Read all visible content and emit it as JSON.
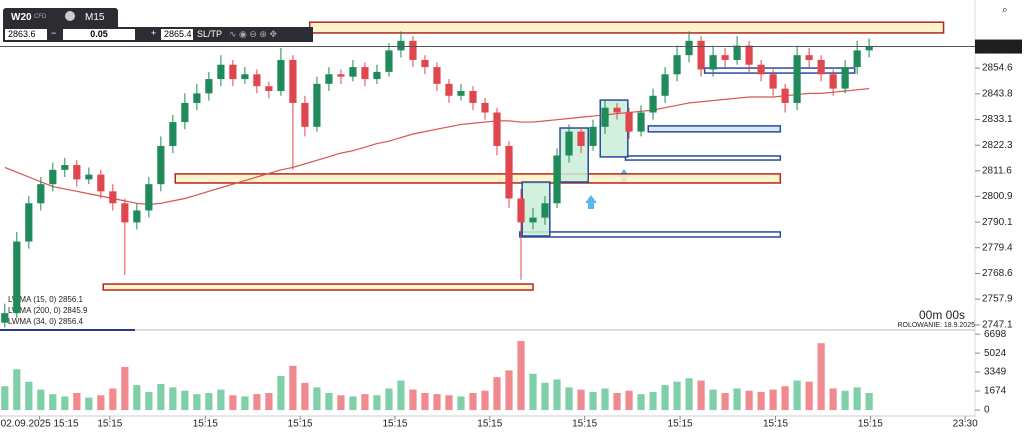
{
  "toolbar": {
    "symbol": "W20",
    "symbol_type": "CFD",
    "timeframe": "M15",
    "sell": "2863.6",
    "spread": "0.05",
    "buy": "2865.4",
    "sltp": "SL/TP"
  },
  "timer": "00m 00s",
  "rollover": "ROLOWANIE: 18.9.2025",
  "chart_data": [
    {
      "type": "candlestick",
      "open": [
        2748,
        2752,
        2782,
        2798,
        2806,
        2812,
        2814,
        2808,
        2810,
        2803,
        2798,
        2790,
        2795,
        2806,
        2822,
        2832,
        2840,
        2844,
        2850,
        2856,
        2850,
        2852,
        2847,
        2845,
        2858,
        2840,
        2830,
        2848,
        2852,
        2851,
        2855,
        2850,
        2853,
        2862,
        2866,
        2858,
        2855,
        2848,
        2843,
        2845,
        2840,
        2836,
        2822,
        2800,
        2790,
        2792,
        2798,
        2818,
        2828,
        2822,
        2830,
        2838,
        2836,
        2828,
        2836,
        2843,
        2852,
        2860,
        2866,
        2854,
        2860,
        2858,
        2864,
        2856,
        2852,
        2846,
        2840,
        2860,
        2858,
        2852,
        2846,
        2855,
        2862
      ],
      "high": [
        2756,
        2786,
        2801,
        2809,
        2815,
        2817,
        2816,
        2813,
        2812,
        2806,
        2800,
        2798,
        2809,
        2826,
        2835,
        2844,
        2848,
        2853,
        2860,
        2858,
        2855,
        2854,
        2849,
        2863,
        2860,
        2843,
        2851,
        2855,
        2854,
        2858,
        2857,
        2856,
        2865,
        2870,
        2868,
        2860,
        2857,
        2850,
        2848,
        2847,
        2842,
        2838,
        2824,
        2804,
        2796,
        2801,
        2821,
        2831,
        2830,
        2833,
        2841,
        2840,
        2838,
        2839,
        2846,
        2855,
        2864,
        2870,
        2868,
        2864,
        2863,
        2868,
        2866,
        2858,
        2854,
        2848,
        2864,
        2863,
        2860,
        2854,
        2858,
        2866,
        2867
      ],
      "low": [
        2746,
        2750,
        2779,
        2795,
        2803,
        2809,
        2805,
        2806,
        2800,
        2795,
        2768,
        2787,
        2792,
        2803,
        2819,
        2829,
        2837,
        2841,
        2847,
        2847,
        2848,
        2844,
        2842,
        2843,
        2812,
        2826,
        2828,
        2845,
        2848,
        2849,
        2847,
        2848,
        2851,
        2859,
        2855,
        2852,
        2845,
        2840,
        2841,
        2837,
        2833,
        2818,
        2796,
        2766,
        2787,
        2789,
        2796,
        2815,
        2819,
        2820,
        2827,
        2833,
        2825,
        2826,
        2833,
        2840,
        2849,
        2857,
        2851,
        2851,
        2855,
        2856,
        2853,
        2849,
        2843,
        2836,
        2837,
        2855,
        2849,
        2843,
        2844,
        2852,
        2859
      ],
      "close": [
        2752,
        2782,
        2798,
        2806,
        2812,
        2814,
        2808,
        2810,
        2803,
        2798,
        2790,
        2795,
        2806,
        2822,
        2832,
        2840,
        2844,
        2850,
        2856,
        2850,
        2852,
        2847,
        2845,
        2858,
        2840,
        2830,
        2848,
        2852,
        2851,
        2855,
        2850,
        2853,
        2862,
        2866,
        2858,
        2855,
        2848,
        2843,
        2845,
        2840,
        2836,
        2822,
        2800,
        2790,
        2792,
        2798,
        2818,
        2828,
        2822,
        2830,
        2838,
        2836,
        2828,
        2836,
        2843,
        2852,
        2860,
        2866,
        2854,
        2860,
        2858,
        2864,
        2856,
        2852,
        2846,
        2840,
        2860,
        2858,
        2852,
        2846,
        2855,
        2862,
        2863.6
      ],
      "up_color": "#1f8a5a",
      "down_color": "#e0464e",
      "ylim": [
        2745.8,
        2878.9
      ],
      "yticks": [
        2854.6,
        2843.8,
        2833.1,
        2822.3,
        2811.6,
        2800.9,
        2790.1,
        2779.4,
        2768.6,
        2757.9,
        2747.1
      ],
      "xlim": [
        -0.4,
        84.9
      ],
      "x_labels": [
        {
          "index": 2.9,
          "label": "02.09.2025 15:15"
        },
        {
          "index": 8.75,
          "label": "15:15"
        },
        {
          "index": 16.7,
          "label": "15:15"
        },
        {
          "index": 24.6,
          "label": "15:15"
        },
        {
          "index": 32.5,
          "label": "15:15"
        },
        {
          "index": 40.4,
          "label": "15:15"
        },
        {
          "index": 48.3,
          "label": "15:15"
        },
        {
          "index": 56.25,
          "label": "15:15"
        },
        {
          "index": 64.2,
          "label": "15:15"
        },
        {
          "index": 72.1,
          "label": "15:15"
        },
        {
          "index": 80,
          "label": "23:30"
        }
      ],
      "last_price": 2863.6,
      "indicators": [
        {
          "label": "LWMA (15, 0) 2856.1",
          "color": "#6b6bd0"
        },
        {
          "label": "LWMA (200, 0) 2845.9",
          "color": "#d9534f",
          "values": [
            2813,
            2811,
            2809,
            2807,
            2805,
            2804,
            2803,
            2802,
            2801,
            2800,
            2799,
            2798,
            2797.5,
            2798,
            2799,
            2800,
            2801.5,
            2803,
            2804.5,
            2806,
            2807.5,
            2809,
            2810.5,
            2812,
            2813,
            2814.5,
            2816,
            2817.5,
            2819,
            2820,
            2821.5,
            2823,
            2824,
            2825.5,
            2827,
            2828,
            2829,
            2830,
            2831,
            2831.5,
            2832,
            2832.5,
            2832.5,
            2832,
            2832,
            2832.5,
            2833,
            2833.5,
            2834,
            2834.5,
            2835,
            2835.5,
            2836,
            2836.5,
            2837,
            2838,
            2839,
            2840,
            2840.5,
            2841,
            2841.5,
            2842,
            2842.5,
            2842.5,
            2842.5,
            2843,
            2843.5,
            2844,
            2844,
            2844.5,
            2845,
            2845.5,
            2846
          ]
        },
        {
          "label": "LWMA (34, 0) 2856.4",
          "color": "#3fa36b"
        }
      ],
      "zones": [
        {
          "start": 25.4,
          "end": 78.2,
          "low": 2869.3,
          "high": 2873.8,
          "border": "#b3261e",
          "fill": "#fff2c6"
        },
        {
          "start": 14.2,
          "end": 64.6,
          "low": 2806.5,
          "high": 2810.3,
          "border": "#b3261e",
          "fill": "#fff2c6"
        },
        {
          "start": 8.2,
          "end": 44,
          "low": 2761.7,
          "high": 2764.2,
          "border": "#b3261e",
          "fill": "#fff2c6"
        },
        {
          "start": 42.9,
          "end": 64.6,
          "low": 2783.9,
          "high": 2786,
          "border": "#2a4a9a",
          "fill": "#ffffff"
        },
        {
          "start": 51.7,
          "end": 64.6,
          "low": 2816.1,
          "high": 2817.8,
          "border": "#2a4a9a",
          "fill": "#ffffff"
        },
        {
          "start": 53.6,
          "end": 64.6,
          "low": 2827.9,
          "high": 2830.4,
          "border": "#2a4a9a",
          "fill": "#cfe6f7"
        },
        {
          "start": 58.3,
          "end": 70.8,
          "low": 2852.5,
          "high": 2854.6,
          "border": "#2a4a9a",
          "fill": "#ffffff"
        },
        {
          "start": 43.1,
          "end": 45.4,
          "low": 2784.3,
          "high": 2806.9,
          "border": "#2a4a9a",
          "fill": "#c9efd8"
        },
        {
          "start": 46.25,
          "end": 48.6,
          "low": 2806.9,
          "high": 2829.5,
          "border": "#2a4a9a",
          "fill": "#c9efd8"
        },
        {
          "start": 49.6,
          "end": 51.9,
          "low": 2817.4,
          "high": 2841.2,
          "border": "#2a4a9a",
          "fill": "#c9efd8"
        }
      ]
    },
    {
      "type": "bar",
      "values": [
        2100,
        3600,
        2500,
        1800,
        1400,
        1200,
        1500,
        1100,
        1300,
        1900,
        3800,
        2200,
        1600,
        2300,
        2000,
        1700,
        1400,
        1500,
        1800,
        1300,
        1200,
        1400,
        1500,
        3000,
        3900,
        2400,
        2000,
        1500,
        1300,
        1200,
        1400,
        1300,
        1900,
        2600,
        1800,
        1500,
        1400,
        1300,
        1200,
        1500,
        1700,
        2900,
        3500,
        6100,
        3200,
        2400,
        2700,
        2000,
        1800,
        1600,
        1900,
        1500,
        1700,
        1400,
        1600,
        2200,
        2500,
        2800,
        2600,
        1800,
        1500,
        1900,
        1700,
        1600,
        1800,
        2100,
        2600,
        2500,
        5900,
        1900,
        1700,
        2000,
        1500
      ],
      "up_color": "#7fcfa8",
      "down_color": "#f08a8f",
      "ylim": [
        0,
        6800
      ],
      "yticks": [
        6698,
        5024,
        3349,
        1674,
        0
      ]
    }
  ]
}
